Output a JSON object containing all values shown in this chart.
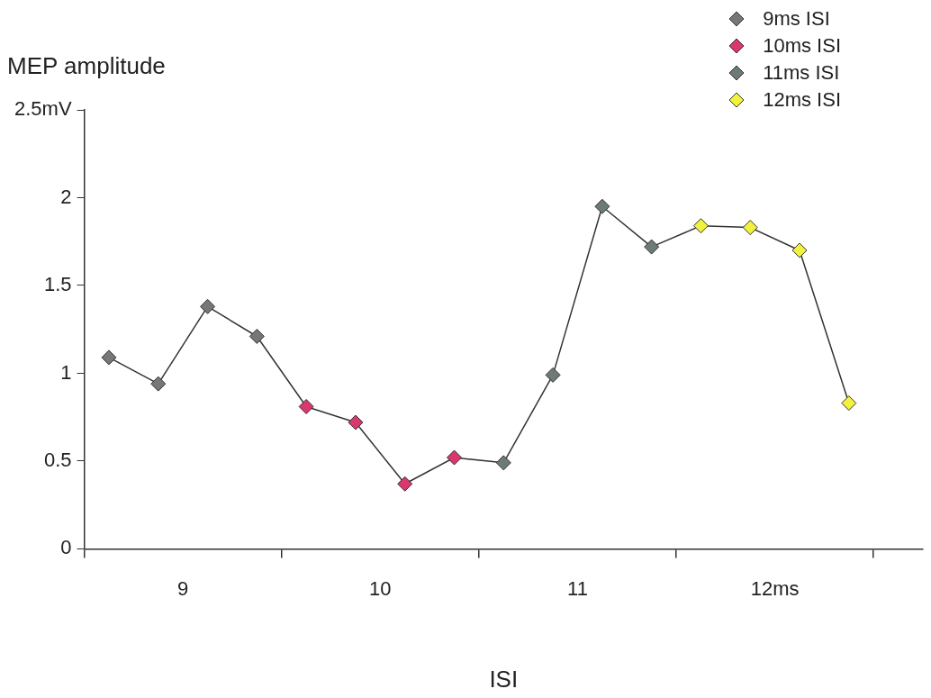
{
  "chart_data": {
    "type": "scatter",
    "xlabel": "ISI",
    "ylabel": "MEP amplitude",
    "marker": "diamond",
    "legend": "top right",
    "xlim": [
      8.5,
      12.75
    ],
    "xticks": [
      {
        "value": 8.5,
        "label": null
      },
      {
        "value": 9,
        "label": "9"
      },
      {
        "value": 9.5,
        "label": null
      },
      {
        "value": 10,
        "label": "10"
      },
      {
        "value": 10.5,
        "label": null
      },
      {
        "value": 11,
        "label": "11"
      },
      {
        "value": 11.5,
        "label": null
      },
      {
        "value": 12,
        "label": "12ms"
      },
      {
        "value": 12.5,
        "label": null
      }
    ],
    "ylim": [
      0,
      2.5
    ],
    "yticks": [
      0,
      0.5,
      1,
      1.5,
      2,
      {
        "value": 2.5,
        "label": "2.5mV"
      }
    ],
    "series": [
      {
        "type": "line",
        "marker": "none",
        "color": "#333333",
        "x": [
          8.625,
          8.875,
          9.125,
          9.375,
          9.625,
          9.875,
          10.125,
          10.375,
          10.625,
          10.875,
          11.125,
          11.375,
          11.625,
          11.875,
          12.125,
          12.375
        ],
        "values": [
          1.09,
          0.94,
          1.38,
          1.21,
          0.81,
          0.72,
          0.37,
          0.52,
          0.49,
          0.99,
          1.95,
          1.72,
          1.84,
          1.83,
          1.7,
          0.83
        ]
      },
      {
        "name": "9ms ISI",
        "color": "#777777",
        "x": [
          8.625,
          8.875,
          9.125,
          9.375
        ],
        "values": [
          1.09,
          0.94,
          1.38,
          1.21
        ]
      },
      {
        "name": "10ms ISI",
        "color": "#d9376e",
        "x": [
          9.625,
          9.875,
          10.125,
          10.375
        ],
        "values": [
          0.81,
          0.72,
          0.37,
          0.52
        ]
      },
      {
        "name": "11ms ISI",
        "color": "#6e7a74",
        "x": [
          10.625,
          10.875,
          11.125,
          11.375
        ],
        "values": [
          0.49,
          0.99,
          1.95,
          1.72
        ]
      },
      {
        "name": "12ms ISI",
        "color": "#f2f23c",
        "x": [
          11.625,
          11.875,
          12.125,
          12.375
        ],
        "values": [
          1.84,
          1.83,
          1.7,
          0.83
        ]
      }
    ]
  }
}
